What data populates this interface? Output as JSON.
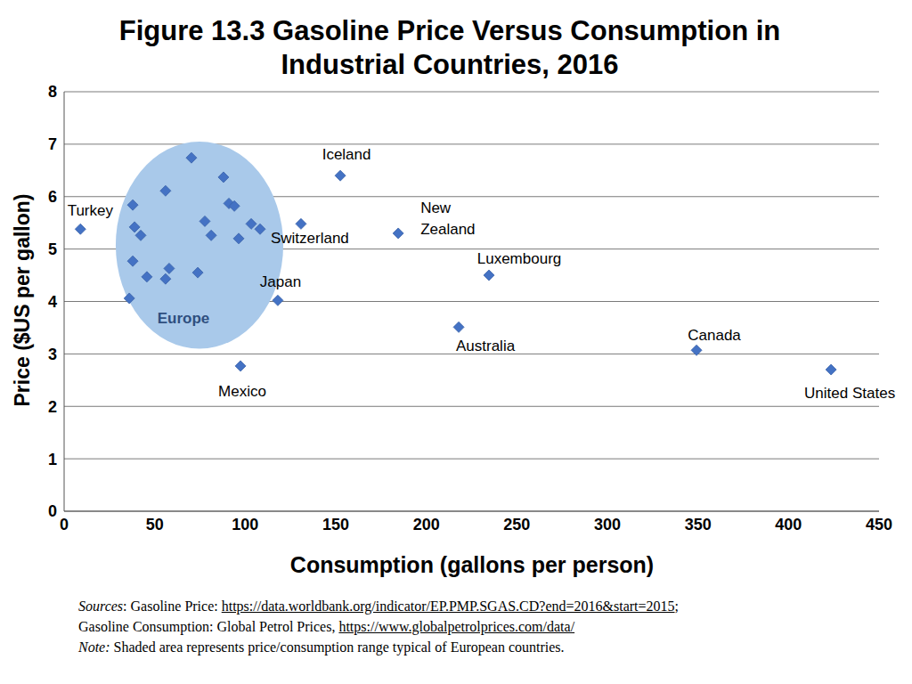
{
  "chart_data": {
    "type": "scatter",
    "title": "Figure 13.3 Gasoline Price Versus Consumption in Industrial Countries, 2016",
    "x_label": "Consumption (gallons per person)",
    "y_label": "Price ($US per gallon)",
    "x": [
      9,
      37.9,
      38.9,
      42.3,
      37.9,
      36,
      45.7,
      56,
      56,
      58,
      70.3,
      73.8,
      77.7,
      81.2,
      88,
      91,
      94,
      96.4,
      103.3,
      108.2,
      130.8,
      118,
      97.4,
      152.5,
      184.5,
      234.6,
      217.9,
      349.2,
      423.5
    ],
    "values": [
      5.38,
      5.84,
      5.42,
      5.26,
      4.77,
      4.06,
      4.47,
      6.11,
      4.43,
      4.63,
      6.74,
      4.55,
      5.53,
      5.26,
      6.37,
      5.87,
      5.82,
      5.2,
      5.48,
      5.38,
      5.48,
      4.02,
      2.77,
      6.4,
      5.3,
      4.5,
      3.51,
      3.07,
      2.7
    ],
    "point_labels": [
      "Turkey",
      null,
      null,
      null,
      null,
      null,
      null,
      null,
      null,
      null,
      null,
      null,
      null,
      null,
      null,
      null,
      null,
      null,
      null,
      null,
      "Switzerland",
      "Japan",
      "Mexico",
      "Iceland",
      "New Zealand",
      "Luxembourg",
      "Australia",
      "Canada",
      "United States"
    ],
    "color": "#4472c4",
    "marker": "diamond",
    "xlim": [
      0,
      450
    ],
    "xticks": [
      0,
      50,
      100,
      150,
      200,
      250,
      300,
      350,
      400,
      450
    ],
    "ylim": [
      0,
      8
    ],
    "yticks": [
      0,
      1,
      2,
      3,
      4,
      5,
      6,
      7,
      8
    ],
    "grid": true,
    "regions": [
      {
        "label": "Europe",
        "x": [
          28.5,
          121
        ],
        "y": [
          3.1,
          7.05
        ],
        "color": "#a9c9ea"
      }
    ],
    "footnotes": [
      [
        {
          "text": "Sources",
          "italic": true
        },
        {
          "text": ": Gasoline Price: "
        },
        {
          "text": "https://data.worldbank.org/indicator/EP.PMP.SGAS.CD?end=2016&start=2015",
          "underline": true
        },
        {
          "text": ";"
        }
      ],
      [
        {
          "text": "Gasoline Consumption: Global Petrol Prices, "
        },
        {
          "text": "https://www.globalpetrolprices.com/data/",
          "underline": true
        }
      ],
      [
        {
          "text": "Note:",
          "italic": true
        },
        {
          "text": " Shaded area represents price/consumption range typical of European countries."
        }
      ]
    ]
  }
}
